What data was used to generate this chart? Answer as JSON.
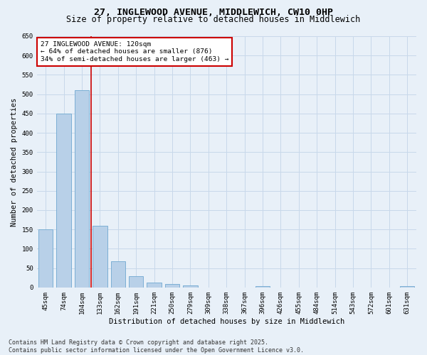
{
  "title_line1": "27, INGLEWOOD AVENUE, MIDDLEWICH, CW10 0HP",
  "title_line2": "Size of property relative to detached houses in Middlewich",
  "xlabel": "Distribution of detached houses by size in Middlewich",
  "ylabel": "Number of detached properties",
  "categories": [
    "45sqm",
    "74sqm",
    "104sqm",
    "133sqm",
    "162sqm",
    "191sqm",
    "221sqm",
    "250sqm",
    "279sqm",
    "309sqm",
    "338sqm",
    "367sqm",
    "396sqm",
    "426sqm",
    "455sqm",
    "484sqm",
    "514sqm",
    "543sqm",
    "572sqm",
    "601sqm",
    "631sqm"
  ],
  "values": [
    150,
    450,
    510,
    160,
    68,
    30,
    13,
    8,
    5,
    0,
    0,
    0,
    3,
    0,
    0,
    0,
    0,
    0,
    0,
    0,
    4
  ],
  "bar_color": "#b8d0e8",
  "bar_edge_color": "#6fa8d0",
  "grid_color": "#c8d8ea",
  "bg_color": "#e8f0f8",
  "annotation_line1": "27 INGLEWOOD AVENUE: 120sqm",
  "annotation_line2": "← 64% of detached houses are smaller (876)",
  "annotation_line3": "34% of semi-detached houses are larger (463) →",
  "annotation_box_color": "#ffffff",
  "annotation_box_edge_color": "#cc0000",
  "vline_x_index": 2.5,
  "vline_color": "#cc0000",
  "ylim": [
    0,
    650
  ],
  "yticks": [
    0,
    50,
    100,
    150,
    200,
    250,
    300,
    350,
    400,
    450,
    500,
    550,
    600,
    650
  ],
  "footer_text": "Contains HM Land Registry data © Crown copyright and database right 2025.\nContains public sector information licensed under the Open Government Licence v3.0.",
  "title_fontsize": 9.5,
  "subtitle_fontsize": 8.5,
  "axis_label_fontsize": 7.5,
  "tick_fontsize": 6.5,
  "annotation_fontsize": 6.8,
  "footer_fontsize": 6.0
}
